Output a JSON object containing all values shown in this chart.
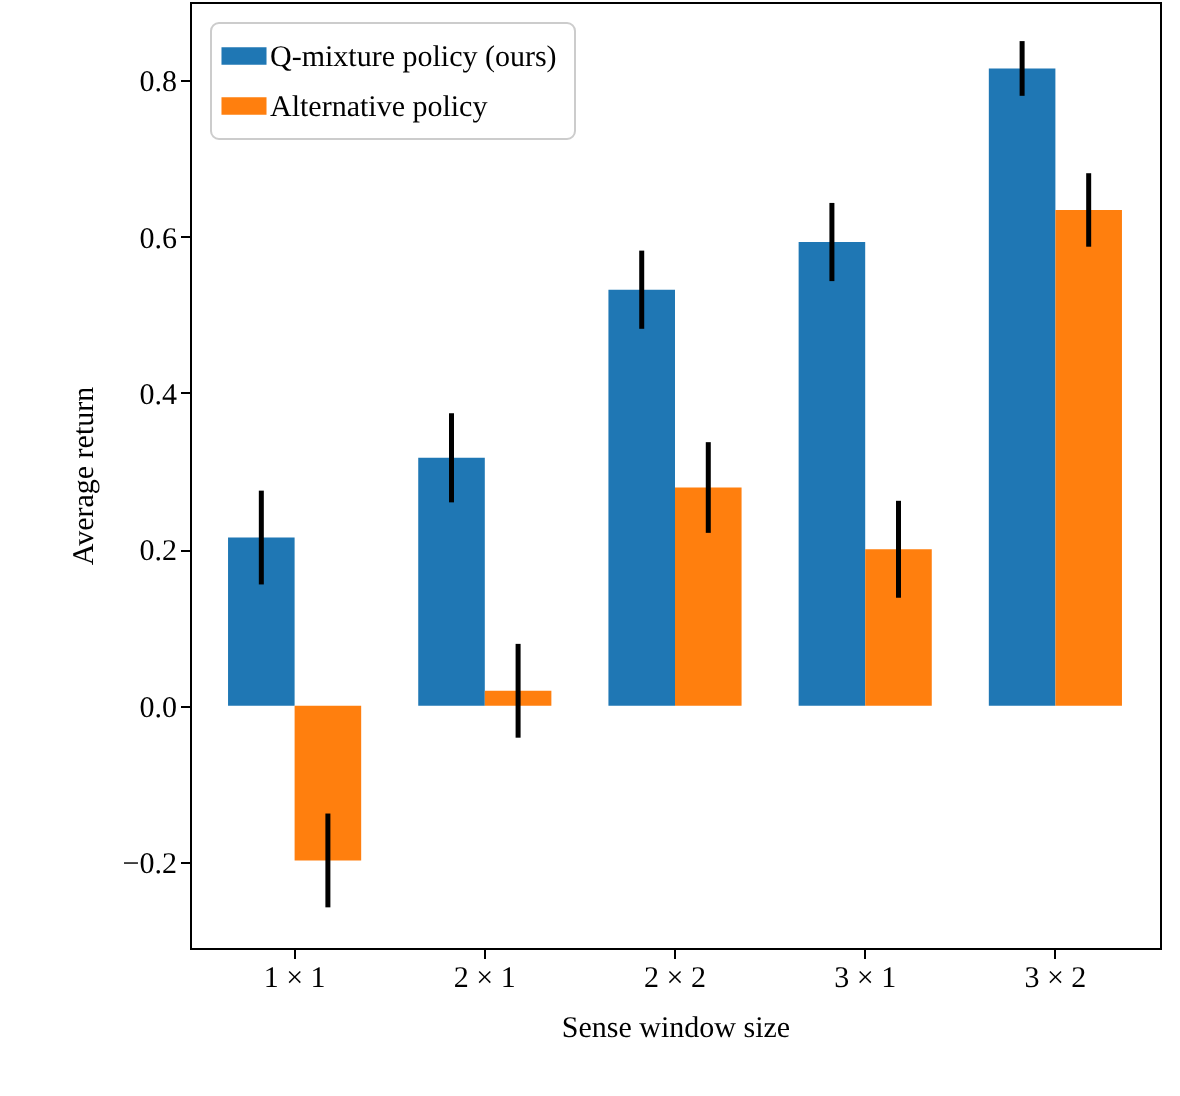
{
  "chart_data": {
    "type": "bar",
    "xlabel": "Sense window size",
    "ylabel": "Average return",
    "categories": [
      "1 × 1",
      "2 × 1",
      "2 × 2",
      "3 × 1",
      "3 × 2"
    ],
    "series": [
      {
        "name": "Q-mixture policy (ours)",
        "color": "#1f77b4",
        "values": [
          0.215,
          0.317,
          0.532,
          0.593,
          0.815
        ],
        "errors": [
          0.06,
          0.057,
          0.05,
          0.05,
          0.035
        ]
      },
      {
        "name": "Alternative policy",
        "color": "#ff7f0e",
        "values": [
          -0.198,
          0.019,
          0.279,
          0.2,
          0.634
        ],
        "errors": [
          0.06,
          0.06,
          0.058,
          0.062,
          0.047
        ]
      }
    ],
    "ylim": [
      -0.31,
      0.9
    ],
    "yticks": [
      -0.2,
      {
        "value": 0,
        "label": "0.0"
      },
      0.2,
      0.4,
      0.6,
      0.8
    ],
    "legend": "top left",
    "grid": false
  }
}
